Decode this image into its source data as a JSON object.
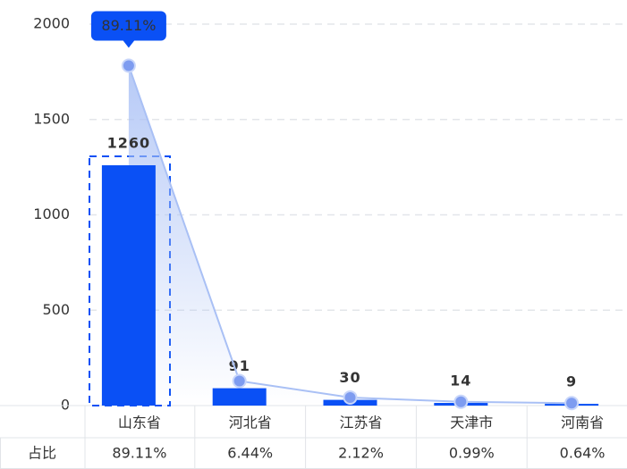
{
  "chart_data": {
    "type": "bar",
    "categories": [
      "山东省",
      "河北省",
      "江苏省",
      "天津市",
      "河南省"
    ],
    "series": [
      {
        "type": "bar",
        "color": "#0a50f5",
        "values": [
          1260,
          91,
          30,
          14,
          9
        ]
      },
      {
        "type": "line",
        "axis": "y2",
        "color": "#a9c0f5",
        "values": [
          89.11,
          6.44,
          2.12,
          0.99,
          0.64
        ],
        "value_labels": [
          "89.11%",
          "6.44%",
          "2.12%",
          "0.99%",
          "0.64%"
        ]
      }
    ],
    "row_label": "占比",
    "ylim": [
      0,
      2000
    ],
    "yticks": [
      0,
      500,
      1000,
      1500,
      2000
    ],
    "y2lim": [
      0,
      100
    ],
    "grid": true
  }
}
